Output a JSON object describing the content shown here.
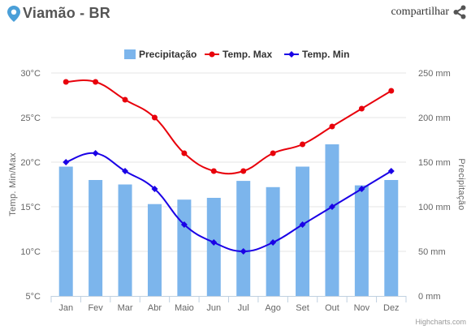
{
  "header": {
    "title": "Viamão - BR",
    "share_label": "compartilhar",
    "pin_icon": "location-pin-icon",
    "share_icon": "share-icon",
    "pin_color": "#4a9fd8"
  },
  "credits": "Highcharts.com",
  "chart_data": {
    "type": "bar",
    "categories": [
      "Jan",
      "Fev",
      "Mar",
      "Abr",
      "Maio",
      "Jun",
      "Jul",
      "Ago",
      "Set",
      "Out",
      "Nov",
      "Dez"
    ],
    "series": [
      {
        "name": "Precipitação",
        "type": "bar",
        "axis": "right",
        "color": "#7cb5ec",
        "values": [
          145,
          130,
          125,
          103,
          108,
          110,
          129,
          122,
          145,
          170,
          124,
          130
        ]
      },
      {
        "name": "Temp. Max",
        "type": "line",
        "axis": "left",
        "color": "#e8000b",
        "values": [
          29,
          29,
          27,
          25,
          21,
          19,
          19,
          21,
          22,
          24,
          26,
          28
        ]
      },
      {
        "name": "Temp. Min",
        "type": "line",
        "axis": "left",
        "color": "#1a00e6",
        "values": [
          20,
          21,
          19,
          17,
          13,
          11,
          10,
          11,
          13,
          15,
          17,
          19
        ]
      }
    ],
    "yleft": {
      "label": "Temp. Min/Max",
      "ticks": [
        "5°C",
        "10°C",
        "15°C",
        "20°C",
        "25°C",
        "30°C"
      ],
      "range": [
        5,
        30
      ]
    },
    "yright": {
      "label": "Precipitação",
      "ticks": [
        "0 mm",
        "50 mm",
        "100 mm",
        "150 mm",
        "200 mm",
        "250 mm"
      ],
      "range": [
        0,
        250
      ]
    },
    "legend": "top-center",
    "grid": true
  }
}
